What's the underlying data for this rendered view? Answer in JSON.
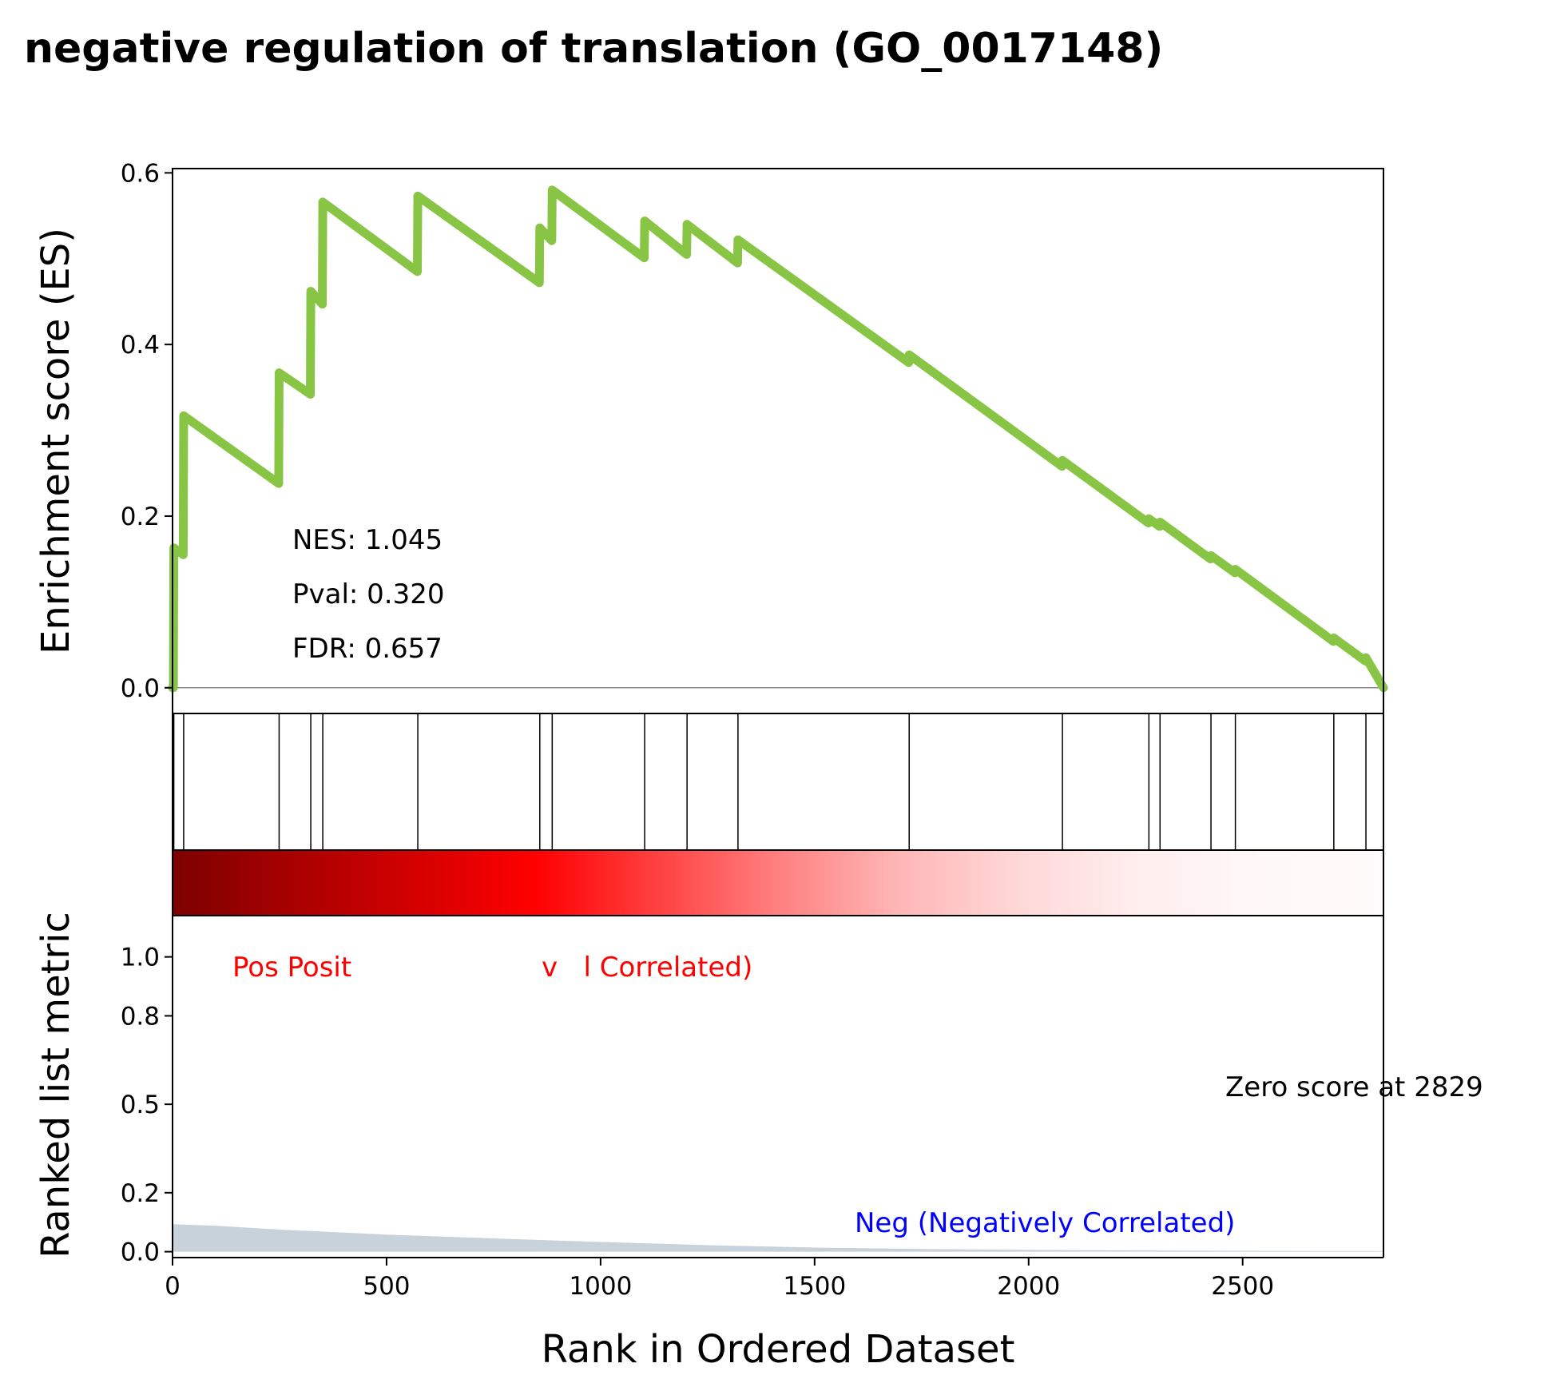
{
  "chart_data": {
    "type": "line",
    "title": "negative regulation of translation (GO_0017148)",
    "xlabel": "Rank in Ordered Dataset",
    "xlim": [
      0,
      2829
    ],
    "x_ticks": [
      "0",
      "500",
      "1000",
      "1500",
      "2000",
      "2500"
    ],
    "panels": {
      "enrichment": {
        "ylabel": "Enrichment score (ES)",
        "ylim": [
          -0.03,
          0.605
        ],
        "y_ticks": [
          "0.0",
          "0.2",
          "0.4",
          "0.6"
        ],
        "series": [
          {
            "color": "#88c544",
            "x": [
              0,
              0,
              2,
              3,
              25,
              26,
              248,
              249,
              322,
              323,
              350,
              351,
              572,
              573,
              857,
              858,
              886,
              887,
              1102,
              1103,
              1201,
              1202,
              1320,
              1321,
              1720,
              1721,
              2078,
              2079,
              2280,
              2281,
              2306,
              2307,
              2425,
              2426,
              2482,
              2483,
              2712,
              2713,
              2787,
              2788,
              2829
            ],
            "y": [
              0.0,
              0.0,
              0.0,
              0.163,
              0.155,
              0.317,
              0.238,
              0.367,
              0.342,
              0.462,
              0.447,
              0.566,
              0.485,
              0.573,
              0.472,
              0.536,
              0.521,
              0.58,
              0.501,
              0.544,
              0.505,
              0.54,
              0.495,
              0.522,
              0.379,
              0.388,
              0.258,
              0.265,
              0.192,
              0.197,
              0.188,
              0.193,
              0.15,
              0.154,
              0.134,
              0.138,
              0.054,
              0.058,
              0.031,
              0.035,
              0.0
            ]
          }
        ],
        "annotations": {
          "nes": "NES: 1.045",
          "pval": "Pval: 0.320",
          "fdr": "FDR: 0.657"
        }
      },
      "hits": {
        "positions": [
          0,
          3,
          26,
          249,
          323,
          351,
          573,
          858,
          887,
          1103,
          1202,
          1321,
          1721,
          2079,
          2281,
          2307,
          2426,
          2483,
          2713,
          2788,
          2829
        ]
      },
      "heatmap": {
        "colors": [
          "#7d0000",
          "#a80000",
          "#d40000",
          "#ff0000",
          "#ff4040",
          "#ff8080",
          "#ffb6b6",
          "#ffd8d8",
          "#ffeeee",
          "#fff8f8",
          "#fffafb"
        ]
      },
      "ranked_metric": {
        "ylabel": "Ranked list metric",
        "ylim": [
          -0.02,
          1.14
        ],
        "y_ticks": [
          "0.0",
          "0.2",
          "0.5",
          "0.8",
          "1.0"
        ],
        "fill_color": "#c8d2db",
        "x": [
          0,
          100,
          250,
          500,
          750,
          1000,
          1250,
          1500,
          1750,
          2000,
          2250,
          2500,
          2829
        ],
        "y": [
          0.093,
          0.088,
          0.075,
          0.058,
          0.045,
          0.033,
          0.022,
          0.014,
          0.009,
          0.006,
          0.004,
          0.003,
          0.002
        ],
        "labels": {
          "pos": "Pos Posit                      v   l Correlated)",
          "neg": "Neg (Negatively Correlated)",
          "zero": "Zero score at 2829"
        },
        "pos_color": "#ff0000",
        "neg_color": "#0000ff"
      }
    }
  }
}
